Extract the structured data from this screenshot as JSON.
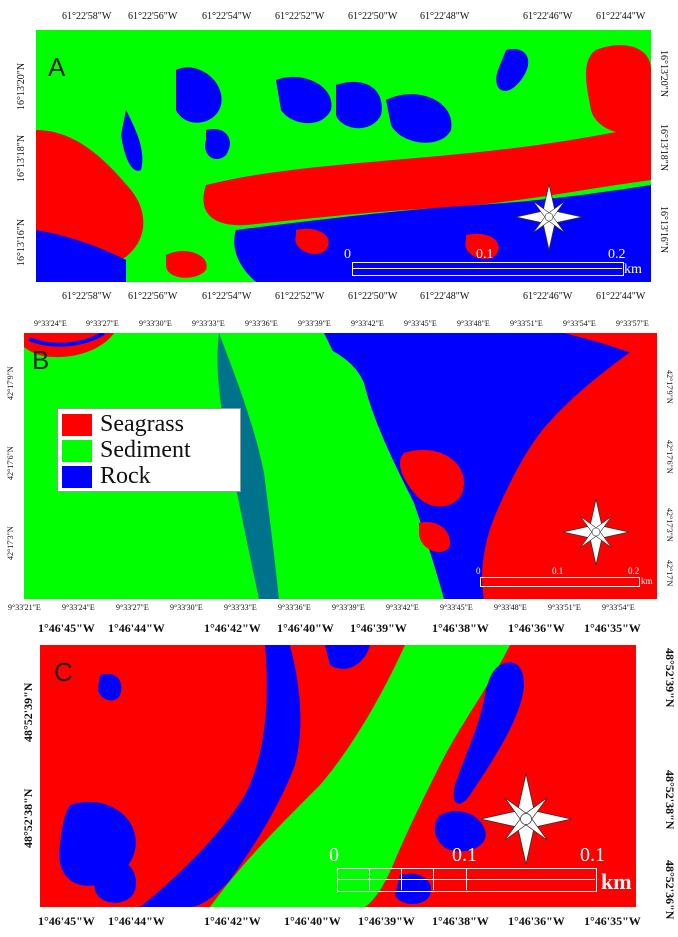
{
  "panels": [
    {
      "letter": "A",
      "top_ticks": [
        "61°22'58\"W",
        "61°22'56\"W",
        "61°22'54\"W",
        "61°22'52\"W",
        "61°22'50\"W",
        "61°22'48\"W",
        "61°22'46\"W",
        "61°22'44\"W"
      ],
      "bottom_ticks": [
        "61°22'58\"W",
        "61°22'56\"W",
        "61°22'54\"W",
        "61°22'52\"W",
        "61°22'50\"W",
        "61°22'48\"W",
        "61°22'46\"W",
        "61°22'44\"W"
      ],
      "left_ticks": [
        "16°13'20\"N",
        "16°13'18\"N",
        "16°13'16\"N"
      ],
      "right_ticks": [
        "16°13'20\"N",
        "16°13'18\"N",
        "16°13'16\"N"
      ],
      "scale": [
        "0",
        "0.1",
        "0.2"
      ],
      "scale_unit": "km"
    },
    {
      "letter": "B",
      "top_ticks": [
        "9°33'24\"E",
        "9°33'27\"E",
        "9°33'30\"E",
        "9°33'33\"E",
        "9°33'36\"E",
        "9°33'39\"E",
        "9°33'42\"E",
        "9°33'45\"E",
        "9°33'48\"E",
        "9°33'51\"E",
        "9°33'54\"E",
        "9°33'57\"E"
      ],
      "bottom_ticks": [
        "9°33'21\"E",
        "9°33'24\"E",
        "9°33'27\"E",
        "9°33'30\"E",
        "9°33'33\"E",
        "9°33'36\"E",
        "9°33'39\"E",
        "9°33'42\"E",
        "9°33'45\"E",
        "9°33'48\"E",
        "9°33'51\"E",
        "9°33'54\"E"
      ],
      "left_ticks": [
        "42°17'9\"N",
        "42°17'6\"N",
        "42°17'3\"N"
      ],
      "right_ticks": [
        "42°17'9\"N",
        "42°17'6\"N",
        "42°17'3\"N",
        "42°17'N"
      ],
      "scale": [
        "0",
        "0.1",
        "0.2"
      ],
      "scale_unit": "km"
    },
    {
      "letter": "C",
      "top_ticks": [
        "1°46'45\"W",
        "1°46'44\"W",
        "1°46'42\"W",
        "1°46'40\"W",
        "1°46'39\"W",
        "1°46'38\"W",
        "1°46'36\"W",
        "1°46'35\"W"
      ],
      "bottom_ticks": [
        "1°46'45\"W",
        "1°46'44\"W",
        "1°46'42\"W",
        "1°46'40\"W",
        "1°46'39\"W",
        "1°46'38\"W",
        "1°46'36\"W",
        "1°46'35\"W"
      ],
      "left_ticks": [
        "48°52'39\"N",
        "48°52'38\"N"
      ],
      "right_ticks": [
        "48°52'39\"N",
        "48°52'38\"N",
        "48°52'36\"N"
      ],
      "scale": [
        "0",
        "0.1",
        "0.1"
      ],
      "scale_unit": "km"
    }
  ],
  "legend": [
    {
      "label": "Seagrass",
      "color": "#ff0000"
    },
    {
      "label": "Sediment",
      "color": "#00ff00"
    },
    {
      "label": "Rock",
      "color": "#0000ff"
    }
  ],
  "compass_north": "N"
}
